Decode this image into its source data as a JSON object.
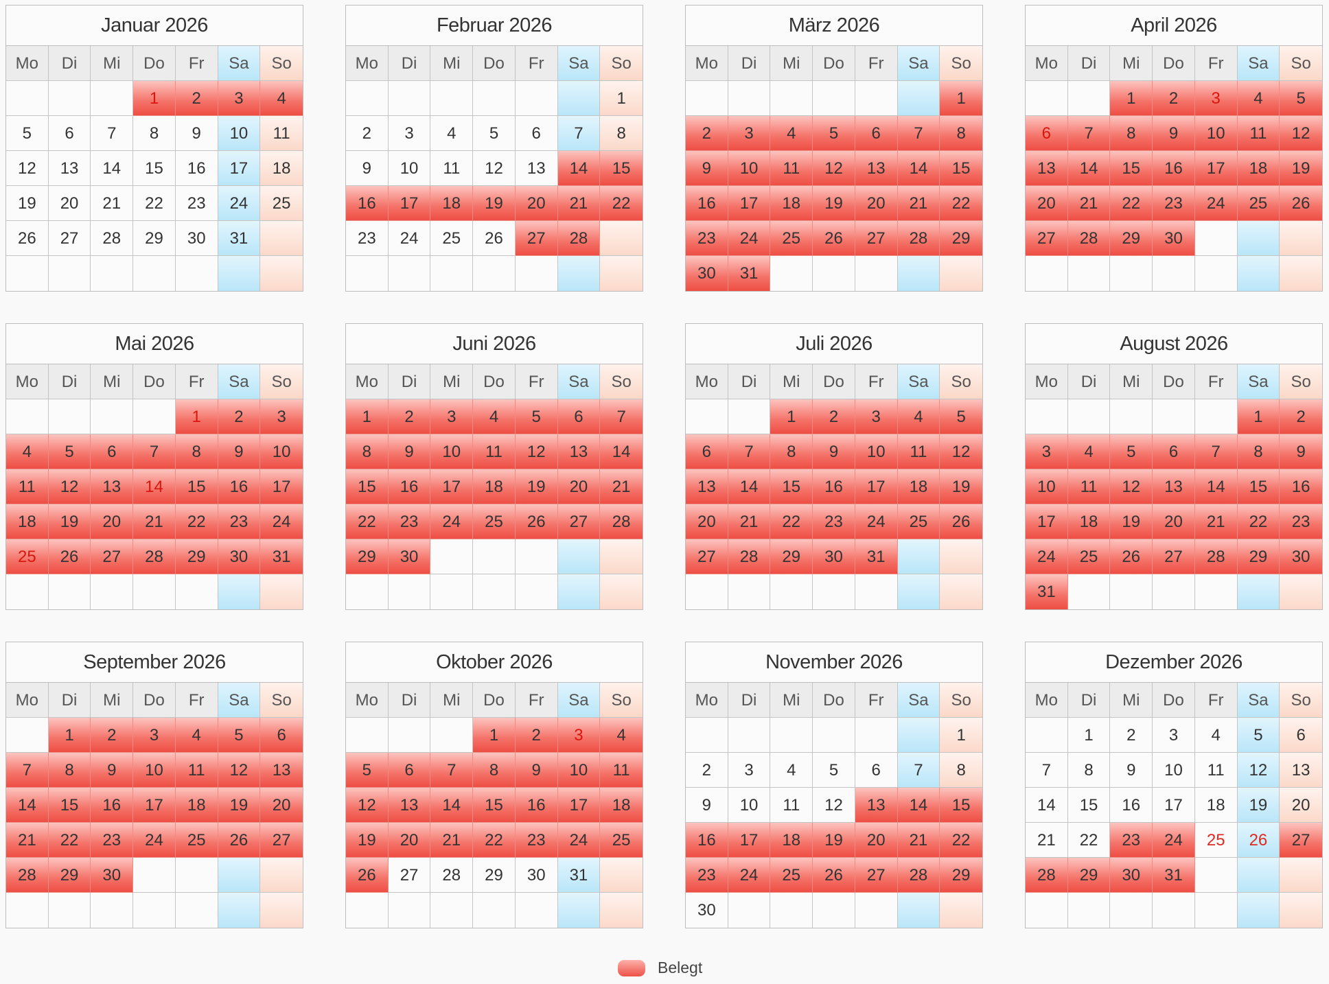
{
  "weekdays": [
    "Mo",
    "Di",
    "Mi",
    "Do",
    "Fr",
    "Sa",
    "So"
  ],
  "legend": {
    "label": "Belegt"
  },
  "months": [
    {
      "title": "Januar 2026",
      "start": 3,
      "days": 31,
      "booked": [
        [
          1,
          4
        ]
      ],
      "holidays": [
        1
      ]
    },
    {
      "title": "Februar 2026",
      "start": 6,
      "days": 28,
      "booked": [
        [
          14,
          22
        ],
        [
          27,
          28
        ]
      ],
      "holidays": []
    },
    {
      "title": "März 2026",
      "start": 6,
      "days": 31,
      "booked": [
        [
          1,
          31
        ]
      ],
      "holidays": []
    },
    {
      "title": "April 2026",
      "start": 2,
      "days": 30,
      "booked": [
        [
          1,
          30
        ]
      ],
      "holidays": [
        3,
        6
      ]
    },
    {
      "title": "Mai 2026",
      "start": 4,
      "days": 31,
      "booked": [
        [
          1,
          31
        ]
      ],
      "holidays": [
        1,
        14,
        25
      ]
    },
    {
      "title": "Juni 2026",
      "start": 0,
      "days": 30,
      "booked": [
        [
          1,
          30
        ]
      ],
      "holidays": []
    },
    {
      "title": "Juli 2026",
      "start": 2,
      "days": 31,
      "booked": [
        [
          1,
          31
        ]
      ],
      "holidays": []
    },
    {
      "title": "August 2026",
      "start": 5,
      "days": 31,
      "booked": [
        [
          1,
          31
        ]
      ],
      "holidays": []
    },
    {
      "title": "September 2026",
      "start": 1,
      "days": 30,
      "booked": [
        [
          1,
          30
        ]
      ],
      "holidays": []
    },
    {
      "title": "Oktober 2026",
      "start": 3,
      "days": 31,
      "booked": [
        [
          1,
          26
        ]
      ],
      "holidays": [
        3
      ]
    },
    {
      "title": "November 2026",
      "start": 6,
      "days": 30,
      "booked": [
        [
          13,
          29
        ]
      ],
      "holidays": []
    },
    {
      "title": "Dezember 2026",
      "start": 1,
      "days": 31,
      "booked": [
        [
          23,
          24
        ],
        [
          27,
          31
        ]
      ],
      "holidays": [
        25,
        26
      ]
    }
  ]
}
